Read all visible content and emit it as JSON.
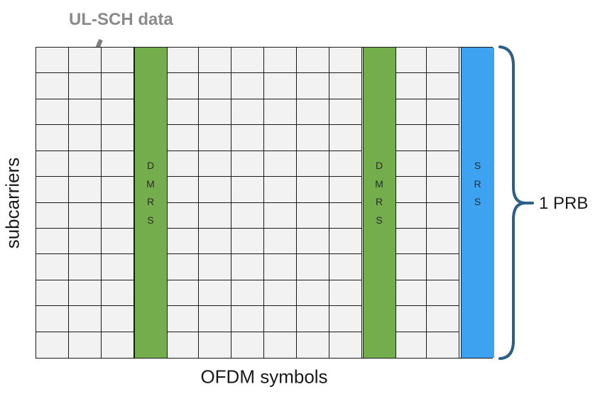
{
  "annotation": {
    "label": "UL-SCH data"
  },
  "axes": {
    "y_label": "subcarriers",
    "x_label": "OFDM symbols"
  },
  "brace": {
    "label": "1 PRB"
  },
  "grid": {
    "columns": 14,
    "rows": 12,
    "cell_color": "#f2f2f2",
    "line_color": "#1a1a1a"
  },
  "columns": [
    {
      "index": 3,
      "letters": [
        "D",
        "M",
        "R",
        "S"
      ],
      "color": "#74ad4b"
    },
    {
      "index": 10,
      "letters": [
        "D",
        "M",
        "R",
        "S"
      ],
      "color": "#74ad4b"
    },
    {
      "index": 13,
      "letters": [
        "S",
        "R",
        "S"
      ],
      "color": "#3da2f0"
    }
  ],
  "colors": {
    "annotation_text": "#8a8a8a",
    "arrow": "#808080",
    "brace": "#2d5f87"
  }
}
